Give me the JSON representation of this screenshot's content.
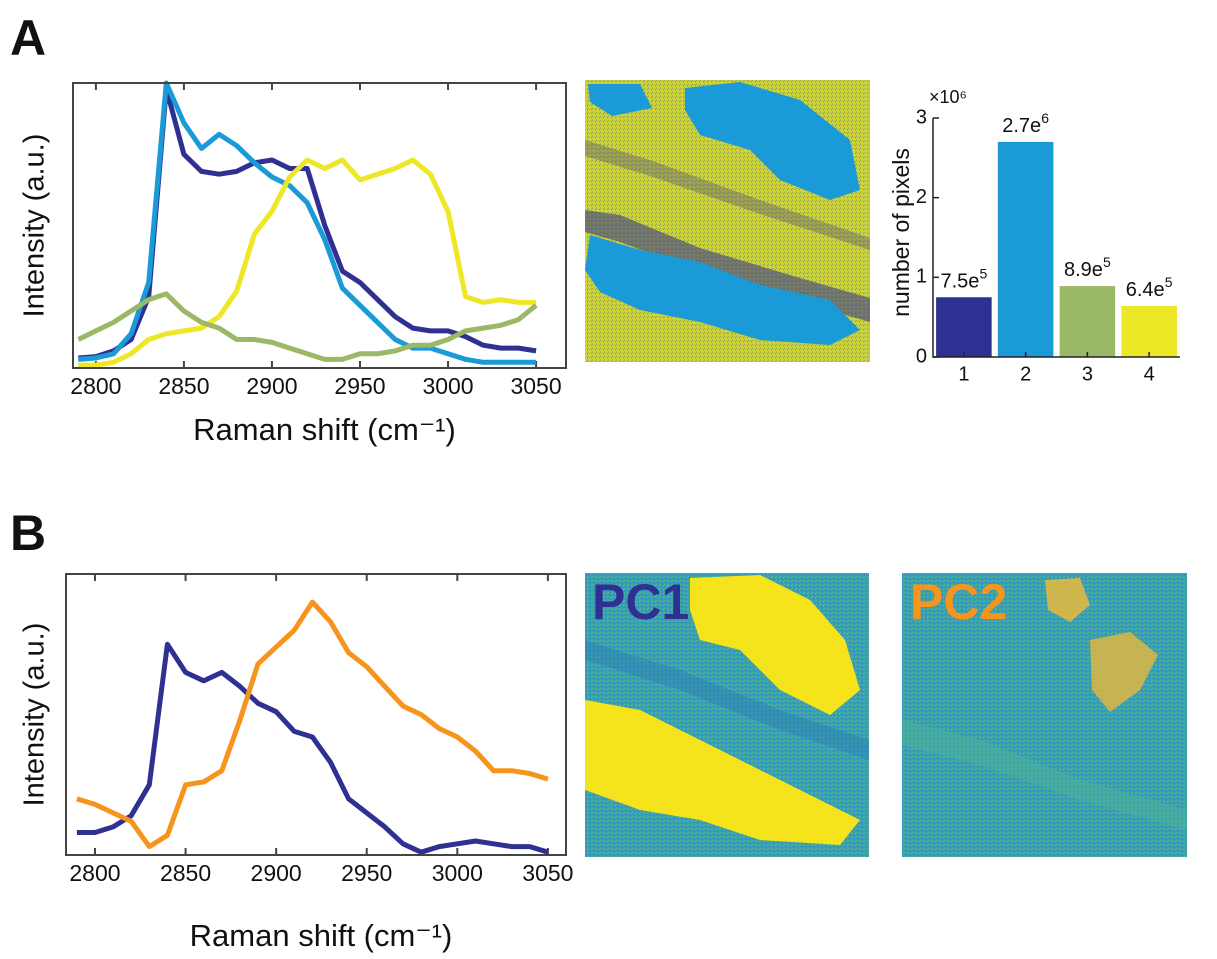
{
  "chart_data": [
    {
      "type": "line",
      "panel": "A",
      "ylabel": "Intensity (a.u.)",
      "xlabel": "Raman shift (cm⁻¹)",
      "x": [
        2790,
        2800,
        2810,
        2820,
        2830,
        2840,
        2850,
        2860,
        2870,
        2880,
        2890,
        2900,
        2910,
        2920,
        2930,
        2940,
        2950,
        2960,
        2970,
        2980,
        2990,
        3000,
        3010,
        3020,
        3030,
        3040,
        3050
      ],
      "series": [
        {
          "color": "#2e3192",
          "values": [
            0.035,
            0.04,
            0.06,
            0.1,
            0.25,
            0.98,
            0.75,
            0.69,
            0.68,
            0.69,
            0.72,
            0.73,
            0.7,
            0.7,
            0.5,
            0.34,
            0.3,
            0.24,
            0.18,
            0.14,
            0.13,
            0.13,
            0.11,
            0.08,
            0.07,
            0.07,
            0.06
          ]
        },
        {
          "color": "#1a9ad6",
          "values": [
            0.03,
            0.035,
            0.05,
            0.12,
            0.3,
            1.0,
            0.86,
            0.77,
            0.82,
            0.78,
            0.72,
            0.67,
            0.64,
            0.58,
            0.45,
            0.28,
            0.22,
            0.16,
            0.1,
            0.07,
            0.07,
            0.05,
            0.03,
            0.02,
            0.02,
            0.02,
            0.02
          ]
        },
        {
          "color": "#ede726",
          "values": [
            0.01,
            0.01,
            0.02,
            0.05,
            0.1,
            0.12,
            0.13,
            0.14,
            0.18,
            0.27,
            0.47,
            0.55,
            0.67,
            0.73,
            0.7,
            0.73,
            0.66,
            0.68,
            0.7,
            0.73,
            0.68,
            0.55,
            0.25,
            0.23,
            0.24,
            0.23,
            0.23
          ]
        },
        {
          "color": "#9ab865",
          "values": [
            0.1,
            0.13,
            0.16,
            0.2,
            0.24,
            0.26,
            0.2,
            0.16,
            0.14,
            0.1,
            0.1,
            0.09,
            0.07,
            0.05,
            0.03,
            0.03,
            0.05,
            0.05,
            0.06,
            0.08,
            0.08,
            0.1,
            0.13,
            0.14,
            0.15,
            0.17,
            0.22
          ]
        }
      ],
      "xlim": [
        2787,
        3067
      ],
      "xticks": [
        2800,
        2850,
        2900,
        2950,
        3000,
        3050
      ],
      "ylim": [
        0,
        1
      ]
    },
    {
      "type": "bar",
      "ylabel": "number of pixels",
      "y_multiplier": "×10⁶",
      "categories": [
        "1",
        "2",
        "3",
        "4"
      ],
      "values": [
        0.75,
        2.7,
        0.89,
        0.64
      ],
      "value_labels": [
        "7.5e5",
        "2.7e6",
        "8.9e5",
        "6.4e5"
      ],
      "colors": [
        "#2e3192",
        "#1a9ad6",
        "#9ab865",
        "#ede726"
      ],
      "ylim": [
        0,
        3
      ],
      "yticks": [
        0,
        1,
        2,
        3
      ]
    },
    {
      "type": "line",
      "panel": "B",
      "ylabel": "Intensity (a.u.)",
      "xlabel": "Raman shift (cm⁻¹)",
      "x": [
        2790,
        2800,
        2810,
        2820,
        2830,
        2840,
        2850,
        2860,
        2870,
        2880,
        2890,
        2900,
        2910,
        2920,
        2930,
        2940,
        2950,
        2960,
        2970,
        2980,
        2990,
        3000,
        3010,
        3020,
        3030,
        3040,
        3050
      ],
      "series": [
        {
          "name": "PC1",
          "color": "#2e3192",
          "values": [
            0.08,
            0.08,
            0.1,
            0.14,
            0.25,
            0.75,
            0.65,
            0.62,
            0.65,
            0.6,
            0.54,
            0.51,
            0.44,
            0.42,
            0.33,
            0.2,
            0.15,
            0.1,
            0.04,
            0.01,
            0.03,
            0.04,
            0.05,
            0.04,
            0.03,
            0.03,
            0.01
          ]
        },
        {
          "name": "PC2",
          "color": "#f7941d",
          "values": [
            0.2,
            0.18,
            0.15,
            0.12,
            0.03,
            0.07,
            0.25,
            0.26,
            0.3,
            0.48,
            0.68,
            0.74,
            0.8,
            0.9,
            0.83,
            0.72,
            0.67,
            0.6,
            0.53,
            0.5,
            0.45,
            0.42,
            0.37,
            0.3,
            0.3,
            0.29,
            0.27
          ]
        }
      ],
      "xlim": [
        2784,
        3060
      ],
      "xticks": [
        2800,
        2850,
        2900,
        2950,
        3000,
        3050
      ],
      "ylim": [
        0,
        1
      ]
    }
  ]
}
